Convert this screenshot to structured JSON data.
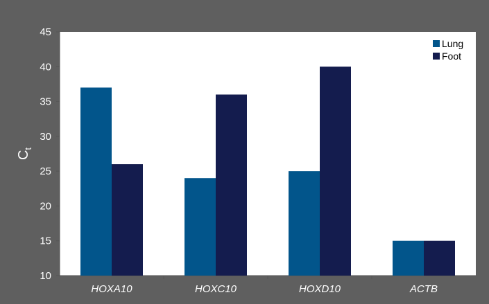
{
  "colors": {
    "background": "#5f5f5f",
    "plot_area": "#ffffff",
    "lung": "#02558b",
    "foot": "#141c4e",
    "text": "#ffffff"
  },
  "chart_data": {
    "type": "bar",
    "categories": [
      "HOXA10",
      "HOXC10",
      "HOXD10",
      "ACTB"
    ],
    "series": [
      {
        "name": "Lung",
        "values": [
          37,
          24,
          25,
          15
        ]
      },
      {
        "name": "Foot",
        "values": [
          26,
          36,
          40,
          15
        ]
      }
    ],
    "ylabel": "C",
    "ylabel_subscript": "t",
    "ylim": [
      10,
      45
    ],
    "yticks": [
      10,
      15,
      20,
      25,
      30,
      35,
      40,
      45
    ],
    "grid": false,
    "legend_position": "top-right"
  }
}
